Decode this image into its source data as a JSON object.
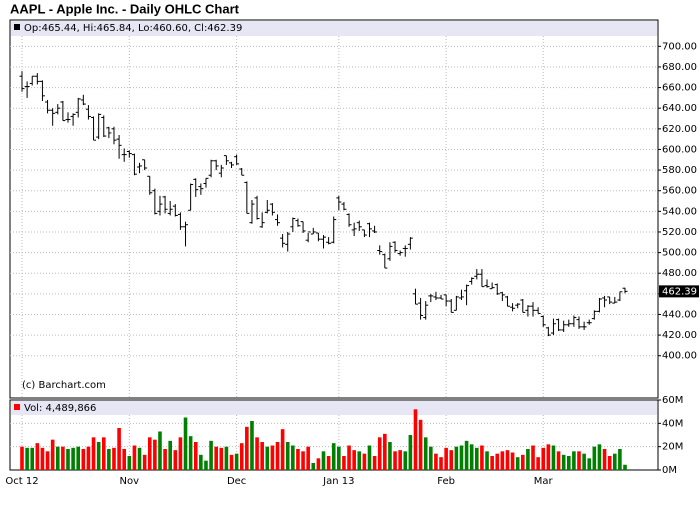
{
  "chart_data": [
    {
      "type": "ohlc",
      "title": "AAPL - Apple Inc. - Daily OHLC Chart",
      "info": "Op:465.44, Hi:465.84, Lo:460.60, Cl:462.39",
      "copyright": "(c) Barchart.com",
      "last_label": "462.39",
      "color": "#000000",
      "legend_color": "#000000",
      "grid": true,
      "categories": [
        "Oct 12",
        null,
        null,
        null,
        null,
        null,
        null,
        null,
        null,
        null,
        null,
        null,
        null,
        null,
        null,
        null,
        null,
        null,
        null,
        null,
        null,
        "Nov",
        null,
        null,
        null,
        null,
        null,
        null,
        null,
        null,
        null,
        null,
        null,
        null,
        null,
        null,
        null,
        null,
        null,
        null,
        null,
        null,
        "Dec",
        null,
        null,
        null,
        null,
        null,
        null,
        null,
        null,
        null,
        null,
        null,
        null,
        null,
        null,
        null,
        null,
        null,
        null,
        null,
        "Jan 13",
        null,
        null,
        null,
        null,
        null,
        null,
        null,
        null,
        null,
        null,
        null,
        null,
        null,
        null,
        null,
        null,
        null,
        null,
        null,
        null,
        "Feb",
        null,
        null,
        null,
        null,
        null,
        null,
        null,
        null,
        null,
        null,
        null,
        null,
        null,
        null,
        null,
        null,
        null,
        null,
        "Mar",
        null,
        null,
        null,
        null,
        null,
        null,
        null,
        null,
        null,
        null,
        null,
        null,
        null,
        null,
        null,
        null
      ],
      "open": [
        671,
        661,
        664,
        671,
        666,
        646,
        638,
        636,
        646,
        629,
        632,
        636,
        648,
        639,
        631,
        612,
        631,
        621,
        620,
        610,
        595,
        598,
        595,
        583,
        590,
        574,
        560,
        540,
        554,
        538,
        545,
        537,
        525,
        541,
        571,
        564,
        567,
        575,
        589,
        577,
        594,
        587,
        593,
        581,
        568,
        529,
        553,
        525,
        539,
        547,
        532,
        514,
        508,
        525,
        531,
        530,
        512,
        518,
        519,
        513,
        510,
        510,
        553,
        547,
        537,
        522,
        529,
        522,
        528,
        521,
        502,
        498,
        494,
        510,
        499,
        504,
        508,
        460,
        451,
        437,
        458,
        457,
        456,
        459,
        453,
        444,
        456,
        463,
        472,
        477,
        479,
        468,
        465,
        469,
        461,
        457,
        447,
        449,
        454,
        444,
        448,
        444,
        438,
        427,
        422,
        435,
        425,
        430,
        431,
        435,
        428,
        432,
        436,
        443,
        456,
        457,
        451,
        454,
        465.44
      ],
      "high": [
        676,
        666,
        671,
        674,
        667,
        648,
        640,
        644,
        647,
        636,
        635,
        650,
        653,
        643,
        632,
        635,
        633,
        622,
        622,
        614,
        601,
        599,
        596,
        587,
        590,
        574,
        562,
        555,
        555,
        550,
        547,
        539,
        530,
        567,
        572,
        567,
        572,
        590,
        590,
        585,
        594,
        588,
        595,
        582,
        569,
        551,
        555,
        539,
        551,
        548,
        537,
        518,
        520,
        534,
        533,
        530,
        519,
        524,
        519,
        517,
        515,
        535,
        555,
        549,
        538,
        529,
        531,
        522,
        529,
        526,
        507,
        499,
        510,
        511,
        502,
        507,
        515,
        465,
        456,
        453,
        460,
        462,
        459,
        459,
        455,
        458,
        464,
        469,
        476,
        484,
        484,
        474,
        471,
        470,
        462,
        458,
        451,
        451,
        455,
        449,
        452,
        447,
        439,
        428,
        436,
        436,
        434,
        435,
        439,
        438,
        433,
        435,
        444,
        456,
        458,
        457,
        457,
        462,
        465.84
      ],
      "low": [
        656,
        650,
        662,
        663,
        647,
        635,
        623,
        634,
        628,
        626,
        623,
        631,
        643,
        629,
        609,
        610,
        612,
        611,
        605,
        591,
        588,
        592,
        575,
        577,
        580,
        556,
        537,
        536,
        538,
        536,
        535,
        522,
        506,
        541,
        554,
        556,
        563,
        573,
        580,
        573,
        585,
        582,
        585,
        575,
        538,
        528,
        532,
        524,
        538,
        536,
        526,
        505,
        501,
        520,
        525,
        519,
        510,
        518,
        511,
        504,
        508,
        509,
        541,
        541,
        525,
        516,
        521,
        515,
        515,
        519,
        498,
        485,
        492,
        500,
        497,
        496,
        503,
        450,
        435,
        435,
        452,
        454,
        455,
        448,
        442,
        444,
        454,
        449,
        469,
        474,
        467,
        466,
        465,
        459,
        453,
        448,
        443,
        446,
        442,
        438,
        438,
        441,
        428,
        419,
        420,
        424,
        423,
        428,
        428,
        426,
        425,
        430,
        435,
        442,
        447,
        450,
        451,
        453,
        460.6
      ],
      "close": [
        659,
        661,
        671,
        666,
        652,
        638,
        635,
        640,
        628,
        629,
        634,
        649,
        644,
        632,
        609,
        634,
        613,
        616,
        609,
        604,
        595,
        596,
        576,
        584,
        582,
        558,
        538,
        547,
        542,
        542,
        536,
        525,
        527,
        566,
        561,
        562,
        572,
        589,
        584,
        582,
        589,
        585,
        586,
        575,
        538,
        547,
        533,
        529,
        541,
        539,
        529,
        509,
        518,
        533,
        526,
        521,
        520,
        520,
        513,
        515,
        509,
        532,
        549,
        542,
        527,
        523,
        525,
        517,
        523,
        520,
        501,
        485,
        506,
        502,
        500,
        504,
        514,
        450,
        439,
        449,
        458,
        456,
        455,
        453,
        442,
        457,
        457,
        468,
        475,
        479,
        467,
        467,
        466,
        460,
        459,
        448,
        446,
        450,
        442,
        448,
        444,
        441,
        430,
        420,
        431,
        425,
        430,
        431,
        437,
        428,
        428,
        432,
        443,
        455,
        454,
        452,
        452,
        462,
        462.39
      ],
      "ylim": [
        359,
        710
      ],
      "yticks": [
        {
          "value": 400,
          "label": "400.00"
        },
        {
          "value": 420,
          "label": "420.00"
        },
        {
          "value": 440,
          "label": "440.00"
        },
        {
          "value": 460,
          "label": "460.00"
        },
        {
          "value": 480,
          "label": "480.00"
        },
        {
          "value": 500,
          "label": "500.00"
        },
        {
          "value": 520,
          "label": "520.00"
        },
        {
          "value": 540,
          "label": "540.00"
        },
        {
          "value": 560,
          "label": "560.00"
        },
        {
          "value": 580,
          "label": "580.00"
        },
        {
          "value": 600,
          "label": "600.00"
        },
        {
          "value": 620,
          "label": "620.00"
        },
        {
          "value": 640,
          "label": "640.00"
        },
        {
          "value": 660,
          "label": "660.00"
        },
        {
          "value": 680,
          "label": "680.00"
        },
        {
          "value": 700,
          "label": "700.00"
        }
      ]
    },
    {
      "type": "bar",
      "info": "Vol: 4,489,866",
      "legend_color": "#ff0000",
      "up_color": "#008000",
      "down_color": "#ff0000",
      "grid": true,
      "values": [
        20,
        19,
        19,
        23,
        19,
        16,
        26,
        20,
        20,
        18,
        19,
        20,
        18,
        20,
        28,
        24,
        28,
        18,
        19,
        36,
        18,
        12,
        21,
        19,
        13,
        28,
        26,
        33,
        18,
        25,
        17,
        28,
        45,
        29,
        24,
        13,
        8,
        25,
        20,
        19,
        20,
        13,
        14,
        23,
        37,
        42,
        28,
        24,
        20,
        21,
        24,
        35,
        24,
        21,
        18,
        16,
        20,
        6,
        10,
        16,
        12,
        23,
        20,
        12,
        21,
        17,
        16,
        14,
        21,
        12,
        28,
        31,
        24,
        16,
        17,
        16,
        30,
        52,
        43,
        28,
        20,
        14,
        11,
        19,
        17,
        20,
        21,
        25,
        22,
        19,
        21,
        16,
        12,
        14,
        16,
        17,
        15,
        11,
        13,
        18,
        21,
        11,
        19,
        22,
        21,
        16,
        13,
        12,
        16,
        16,
        14,
        10,
        20,
        22,
        18,
        12,
        14,
        18,
        4.49
      ],
      "ylim": [
        0,
        60
      ],
      "yticks": [
        {
          "value": 0,
          "label": "0M"
        },
        {
          "value": 20,
          "label": "20M"
        },
        {
          "value": 40,
          "label": "40M"
        },
        {
          "value": 60,
          "label": "60M"
        }
      ]
    }
  ]
}
